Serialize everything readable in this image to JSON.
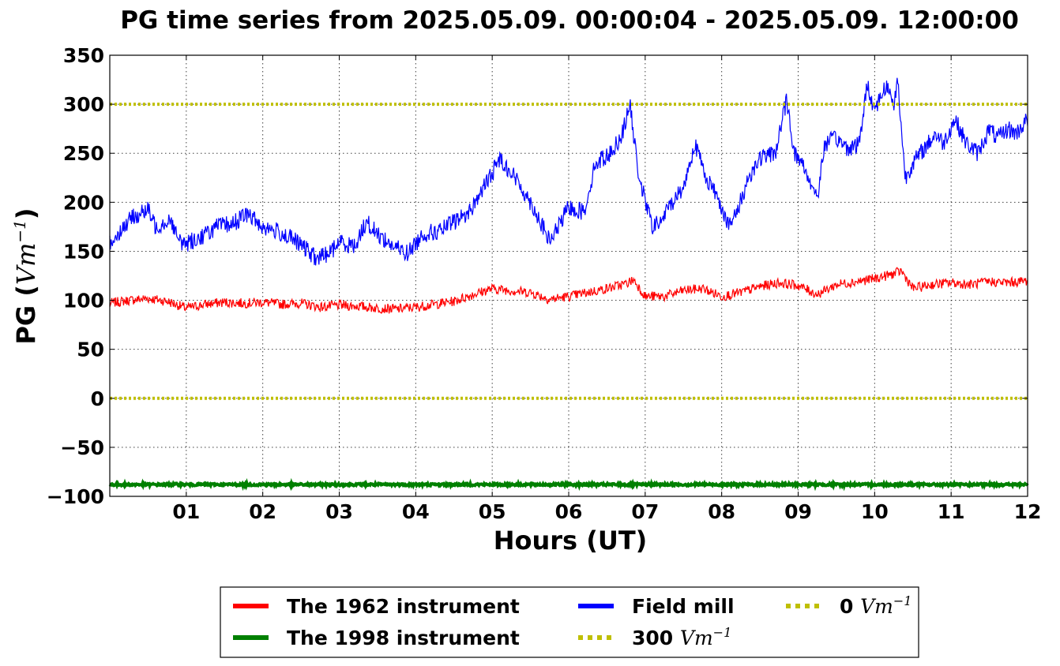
{
  "chart_data": {
    "type": "line",
    "title": "PG time series from 2025.05.09. 00:00:04 - 2025.05.09. 12:00:00",
    "xlabel": "Hours (UT)",
    "ylabel_prefix": "PG (",
    "ylabel_unit": "Vm",
    "ylabel_exp": "−1",
    "ylabel_suffix": ")",
    "xlim": [
      0,
      12
    ],
    "ylim": [
      -100,
      350
    ],
    "xticks": [
      1,
      2,
      3,
      4,
      5,
      6,
      7,
      8,
      9,
      10,
      11,
      12
    ],
    "xtick_labels": [
      "01",
      "02",
      "03",
      "04",
      "05",
      "06",
      "07",
      "08",
      "09",
      "10",
      "11",
      "12"
    ],
    "yticks": [
      -100,
      -50,
      0,
      50,
      100,
      150,
      200,
      250,
      300,
      350
    ],
    "ytick_labels": [
      "−100",
      "−50",
      "0",
      "50",
      "100",
      "150",
      "200",
      "250",
      "300",
      "350"
    ],
    "grid": true,
    "legend_placement": "below plot, 3 columns",
    "series": [
      {
        "name": "The 1962 instrument",
        "color": "#ff0000",
        "style": "solid",
        "x": [
          0,
          0.25,
          0.5,
          0.75,
          1.0,
          1.25,
          1.5,
          1.75,
          2.0,
          2.25,
          2.5,
          2.75,
          3.0,
          3.25,
          3.5,
          3.75,
          4.0,
          4.25,
          4.5,
          4.75,
          5.0,
          5.25,
          5.5,
          5.75,
          6.0,
          6.25,
          6.5,
          6.75,
          6.85,
          7.0,
          7.25,
          7.5,
          7.75,
          8.0,
          8.25,
          8.5,
          8.75,
          9.0,
          9.25,
          9.5,
          9.75,
          10.0,
          10.25,
          10.35,
          10.5,
          10.75,
          11.0,
          11.25,
          11.5,
          11.75,
          12.0
        ],
        "y": [
          97,
          100,
          102,
          99,
          92,
          96,
          98,
          97,
          98,
          96,
          97,
          93,
          95,
          94,
          92,
          91,
          93,
          96,
          99,
          106,
          112,
          110,
          108,
          101,
          104,
          108,
          112,
          117,
          121,
          104,
          104,
          110,
          112,
          104,
          108,
          114,
          118,
          115,
          106,
          116,
          119,
          122,
          127,
          130,
          112,
          116,
          118,
          116,
          119,
          118,
          120
        ]
      },
      {
        "name": "The 1998 instrument",
        "color": "#008000",
        "style": "solid",
        "x": [
          0,
          12
        ],
        "y": [
          -88,
          -88
        ]
      },
      {
        "name": "Field mill",
        "color": "#0000ff",
        "style": "solid",
        "x": [
          0,
          0.15,
          0.3,
          0.5,
          0.6,
          0.8,
          0.9,
          1.0,
          1.2,
          1.4,
          1.6,
          1.8,
          2.0,
          2.2,
          2.4,
          2.6,
          2.7,
          2.9,
          3.0,
          3.2,
          3.35,
          3.5,
          3.7,
          3.9,
          4.1,
          4.3,
          4.5,
          4.7,
          4.85,
          5.0,
          5.1,
          5.3,
          5.5,
          5.6,
          5.75,
          5.9,
          6.0,
          6.2,
          6.35,
          6.55,
          6.7,
          6.8,
          6.9,
          7.0,
          7.1,
          7.2,
          7.35,
          7.5,
          7.65,
          7.8,
          7.95,
          8.1,
          8.2,
          8.35,
          8.5,
          8.7,
          8.85,
          8.95,
          9.05,
          9.25,
          9.35,
          9.5,
          9.65,
          9.8,
          9.9,
          10.0,
          10.15,
          10.25,
          10.3,
          10.4,
          10.5,
          10.65,
          10.8,
          10.9,
          11.05,
          11.2,
          11.35,
          11.5,
          11.6,
          11.75,
          11.85,
          12.0
        ],
        "y": [
          158,
          172,
          185,
          192,
          175,
          183,
          160,
          158,
          165,
          175,
          178,
          188,
          175,
          170,
          162,
          150,
          142,
          150,
          160,
          155,
          180,
          168,
          155,
          148,
          168,
          170,
          180,
          190,
          210,
          230,
          245,
          225,
          200,
          185,
          160,
          180,
          195,
          190,
          240,
          250,
          270,
          300,
          235,
          200,
          175,
          180,
          200,
          215,
          260,
          225,
          205,
          175,
          190,
          225,
          245,
          250,
          305,
          250,
          240,
          205,
          260,
          265,
          255,
          260,
          320,
          295,
          320,
          300,
          325,
          225,
          240,
          255,
          270,
          260,
          285,
          260,
          250,
          275,
          265,
          275,
          270,
          285
        ]
      },
      {
        "name": "300 Vm⁻¹",
        "color": "#bfbf00",
        "style": "dotted",
        "x": [
          0,
          12
        ],
        "y": [
          300,
          300
        ]
      },
      {
        "name": "0 Vm⁻¹",
        "color": "#bfbf00",
        "style": "dotted",
        "x": [
          0,
          12
        ],
        "y": [
          0,
          0
        ]
      }
    ],
    "legend": [
      {
        "prefix": "The 1962 instrument",
        "unit": "",
        "exp": "",
        "color": "#ff0000",
        "style": "solid"
      },
      {
        "prefix": "The 1998 instrument",
        "unit": "",
        "exp": "",
        "color": "#008000",
        "style": "solid"
      },
      {
        "prefix": "Field mill",
        "unit": "",
        "exp": "",
        "color": "#0000ff",
        "style": "solid"
      },
      {
        "prefix": "300 ",
        "unit": "Vm",
        "exp": "−1",
        "color": "#bfbf00",
        "style": "dotted"
      },
      {
        "prefix": "0 ",
        "unit": "Vm",
        "exp": "−1",
        "color": "#bfbf00",
        "style": "dotted"
      }
    ]
  }
}
